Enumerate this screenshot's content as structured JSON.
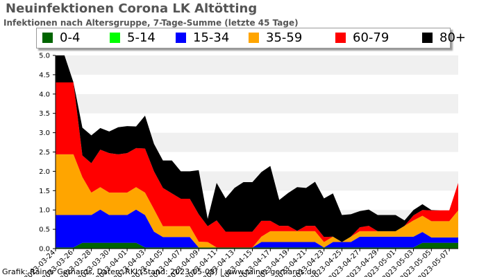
{
  "header": {
    "title": "Neuinfektionen Corona LK Altötting",
    "subtitle": "Infektionen nach Altersgruppe, 7-Tage-Summe (letzte 45 Tage)"
  },
  "credit": "Grafik: Rainer Gerhards, Daten: RKI (Stand: 2023-05-08) | www.rainer-gerhards.de",
  "chart_data": {
    "type": "area",
    "stacked": true,
    "title": "Neuinfektionen Corona LK Altötting",
    "subtitle": "Infektionen nach Altersgruppe, 7-Tage-Summe (letzte 45 Tage)",
    "xlabel": "",
    "ylabel": "",
    "ylim": [
      0,
      5
    ],
    "yticks": [
      "0.0",
      "0.5",
      "1.0",
      "1.5",
      "2.0",
      "2.5",
      "3.0",
      "3.5",
      "4.0",
      "4.5",
      "5.0"
    ],
    "grid": "horizontal bands",
    "legend_position": "top",
    "x": [
      "2023-03-24",
      "2023-03-25",
      "2023-03-26",
      "2023-03-27",
      "2023-03-28",
      "2023-03-29",
      "2023-03-30",
      "2023-03-31",
      "2023-04-01",
      "2023-04-02",
      "2023-04-03",
      "2023-04-04",
      "2023-04-05",
      "2023-04-06",
      "2023-04-07",
      "2023-04-08",
      "2023-04-09",
      "2023-04-10",
      "2023-04-11",
      "2023-04-12",
      "2023-04-13",
      "2023-04-14",
      "2023-04-15",
      "2023-04-16",
      "2023-04-17",
      "2023-04-18",
      "2023-04-19",
      "2023-04-20",
      "2023-04-21",
      "2023-04-22",
      "2023-04-23",
      "2023-04-24",
      "2023-04-25",
      "2023-04-26",
      "2023-04-27",
      "2023-04-28",
      "2023-04-29",
      "2023-04-30",
      "2023-05-01",
      "2023-05-02",
      "2023-05-03",
      "2023-05-04",
      "2023-05-05",
      "2023-05-06",
      "2023-05-07",
      "2023-05-08"
    ],
    "xtick_labels": [
      "2023-03-24",
      "2023-03-26",
      "2023-03-28",
      "2023-03-30",
      "2023-04-01",
      "2023-04-03",
      "2023-04-05",
      "2023-04-07",
      "2023-04-09",
      "2023-04-11",
      "2023-04-13",
      "2023-04-15",
      "2023-04-17",
      "2023-04-19",
      "2023-04-21",
      "2023-04-23",
      "2023-04-25",
      "2023-04-27",
      "2023-04-29",
      "2023-05-01",
      "2023-05-03",
      "2023-05-05",
      "2023-05-07"
    ],
    "series": [
      {
        "name": "0-4",
        "color": "#006400",
        "values": [
          0.03,
          0.03,
          0.03,
          0.15,
          0.15,
          0.15,
          0.15,
          0.15,
          0.15,
          0.15,
          0.03,
          0.03,
          0.03,
          0.03,
          0.03,
          0.03,
          0.03,
          0.03,
          0.03,
          0.03,
          0.03,
          0.03,
          0.03,
          0.03,
          0.03,
          0.03,
          0.03,
          0.03,
          0.03,
          0.03,
          0.03,
          0.03,
          0.03,
          0.03,
          0.03,
          0.03,
          0.03,
          0.03,
          0.03,
          0.03,
          0.03,
          0.15,
          0.15,
          0.15,
          0.15,
          0.15
        ]
      },
      {
        "name": "5-14",
        "color": "#00ff00",
        "values": [
          0,
          0,
          0,
          0,
          0,
          0,
          0,
          0,
          0,
          0,
          0,
          0,
          0,
          0,
          0,
          0,
          0,
          0,
          0,
          0,
          0,
          0,
          0,
          0,
          0,
          0,
          0,
          0,
          0,
          0,
          0,
          0,
          0,
          0,
          0,
          0,
          0,
          0,
          0,
          0,
          0,
          0,
          0,
          0,
          0,
          0
        ]
      },
      {
        "name": "15-34",
        "color": "#0000ff",
        "values": [
          0.84,
          0.84,
          0.84,
          0.72,
          0.72,
          0.86,
          0.72,
          0.72,
          0.72,
          0.86,
          0.84,
          0.41,
          0.27,
          0.27,
          0.27,
          0.27,
          0,
          0,
          0,
          0,
          0,
          0,
          0,
          0.14,
          0.14,
          0.14,
          0.14,
          0.14,
          0.14,
          0.14,
          0,
          0.14,
          0.14,
          0.14,
          0.28,
          0.28,
          0.28,
          0.28,
          0.28,
          0.28,
          0.28,
          0.28,
          0.14,
          0.14,
          0.14,
          0.14
        ]
      },
      {
        "name": "35-59",
        "color": "#ffa500",
        "values": [
          1.57,
          1.57,
          1.57,
          0.98,
          0.58,
          0.58,
          0.58,
          0.58,
          0.58,
          0.58,
          0.58,
          0.58,
          0.28,
          0.28,
          0.28,
          0.28,
          0.15,
          0.14,
          0,
          0,
          0,
          0,
          0,
          0.14,
          0.28,
          0.28,
          0.28,
          0.28,
          0.28,
          0.28,
          0.14,
          0.14,
          0,
          0.14,
          0.14,
          0.14,
          0.14,
          0.14,
          0.14,
          0.28,
          0.42,
          0.42,
          0.42,
          0.42,
          0.42,
          0.7
        ]
      },
      {
        "name": "60-79",
        "color": "#ff0000",
        "values": [
          1.86,
          1.86,
          1.86,
          0.56,
          0.76,
          0.97,
          1.02,
          0.99,
          1.02,
          1.01,
          1.14,
          0.98,
          0.99,
          0.85,
          0.71,
          0.71,
          0.71,
          0.41,
          0.7,
          0.41,
          0.41,
          0.41,
          0.41,
          0.41,
          0.27,
          0.14,
          0.14,
          0.01,
          0.14,
          0.14,
          0.13,
          0,
          0,
          0,
          0.1,
          0.14,
          0,
          0,
          0,
          0,
          0.13,
          0.15,
          0.28,
          0.28,
          0.28,
          0.71
        ]
      },
      {
        "name": "80+",
        "color": "#000000",
        "values": [
          0.7,
          0.7,
          0,
          0.72,
          0.72,
          0.56,
          0.56,
          0.7,
          0.7,
          0.56,
          0.85,
          0.71,
          0.71,
          0.85,
          0.71,
          0.71,
          1.14,
          0.19,
          0.97,
          0.86,
          1.13,
          1.28,
          1.28,
          1.26,
          1.42,
          0.67,
          0.85,
          1.13,
          0.98,
          1.14,
          1.0,
          1.12,
          0.7,
          0.58,
          0.42,
          0.42,
          0.42,
          0.42,
          0.42,
          0.14,
          0.14,
          0.15,
          0.01,
          0,
          0,
          0
        ]
      }
    ]
  }
}
